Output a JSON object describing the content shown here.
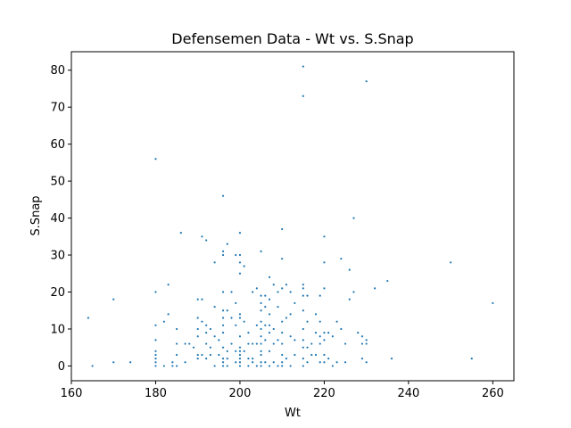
{
  "chart_data": {
    "type": "scatter",
    "title": "Defensemen Data - Wt vs. S.Snap",
    "xlabel": "Wt",
    "ylabel": "S.Snap",
    "xlim": [
      160,
      265
    ],
    "ylim": [
      -4,
      85
    ],
    "xticks": [
      160,
      180,
      200,
      220,
      240,
      260
    ],
    "yticks": [
      0,
      10,
      20,
      30,
      40,
      50,
      60,
      70,
      80
    ],
    "marker_color": "#1f77b4",
    "grid": false,
    "series": [
      {
        "points": [
          [
            164,
            13
          ],
          [
            165,
            0
          ],
          [
            170,
            18
          ],
          [
            170,
            1
          ],
          [
            174,
            1
          ],
          [
            180,
            56
          ],
          [
            180,
            20
          ],
          [
            180,
            11
          ],
          [
            180,
            7
          ],
          [
            180,
            4
          ],
          [
            180,
            3
          ],
          [
            180,
            2
          ],
          [
            180,
            1
          ],
          [
            180,
            0
          ],
          [
            182,
            12
          ],
          [
            182,
            0
          ],
          [
            183,
            22
          ],
          [
            183,
            14
          ],
          [
            184,
            1
          ],
          [
            184,
            0
          ],
          [
            185,
            10
          ],
          [
            185,
            6
          ],
          [
            185,
            3
          ],
          [
            185,
            0
          ],
          [
            186,
            36
          ],
          [
            187,
            6
          ],
          [
            187,
            1
          ],
          [
            188,
            6
          ],
          [
            189,
            5
          ],
          [
            190,
            18
          ],
          [
            190,
            13
          ],
          [
            190,
            10
          ],
          [
            190,
            8
          ],
          [
            190,
            3
          ],
          [
            190,
            2
          ],
          [
            191,
            35
          ],
          [
            191,
            18
          ],
          [
            191,
            12
          ],
          [
            191,
            3
          ],
          [
            192,
            34
          ],
          [
            192,
            11
          ],
          [
            192,
            9
          ],
          [
            192,
            6
          ],
          [
            192,
            2
          ],
          [
            193,
            10
          ],
          [
            193,
            5
          ],
          [
            193,
            3
          ],
          [
            194,
            28
          ],
          [
            194,
            16
          ],
          [
            194,
            8
          ],
          [
            194,
            0
          ],
          [
            195,
            7
          ],
          [
            195,
            3
          ],
          [
            196,
            46
          ],
          [
            196,
            31
          ],
          [
            196,
            30
          ],
          [
            196,
            20
          ],
          [
            196,
            15
          ],
          [
            196,
            13
          ],
          [
            196,
            11
          ],
          [
            196,
            9
          ],
          [
            196,
            5
          ],
          [
            196,
            2
          ],
          [
            196,
            1
          ],
          [
            196,
            0
          ],
          [
            197,
            33
          ],
          [
            197,
            15
          ],
          [
            197,
            4
          ],
          [
            197,
            2
          ],
          [
            197,
            0
          ],
          [
            198,
            20
          ],
          [
            198,
            13
          ],
          [
            198,
            6
          ],
          [
            199,
            30
          ],
          [
            199,
            17
          ],
          [
            199,
            11
          ],
          [
            199,
            4
          ],
          [
            199,
            1
          ],
          [
            200,
            36
          ],
          [
            200,
            30
          ],
          [
            200,
            28
          ],
          [
            200,
            25
          ],
          [
            200,
            14
          ],
          [
            200,
            13
          ],
          [
            200,
            8
          ],
          [
            200,
            5
          ],
          [
            200,
            4
          ],
          [
            200,
            3
          ],
          [
            200,
            2
          ],
          [
            200,
            1
          ],
          [
            200,
            0
          ],
          [
            201,
            27
          ],
          [
            201,
            12
          ],
          [
            201,
            4
          ],
          [
            202,
            9
          ],
          [
            202,
            6
          ],
          [
            202,
            2
          ],
          [
            202,
            0
          ],
          [
            203,
            20
          ],
          [
            203,
            6
          ],
          [
            203,
            2
          ],
          [
            203,
            1
          ],
          [
            204,
            21
          ],
          [
            204,
            11
          ],
          [
            204,
            6
          ],
          [
            204,
            0
          ],
          [
            205,
            31
          ],
          [
            205,
            19
          ],
          [
            205,
            17
          ],
          [
            205,
            15
          ],
          [
            205,
            12
          ],
          [
            205,
            10
          ],
          [
            205,
            8
          ],
          [
            205,
            6
          ],
          [
            205,
            4
          ],
          [
            205,
            3
          ],
          [
            205,
            1
          ],
          [
            205,
            0
          ],
          [
            206,
            19
          ],
          [
            206,
            16
          ],
          [
            206,
            11
          ],
          [
            206,
            7
          ],
          [
            206,
            1
          ],
          [
            207,
            24
          ],
          [
            207,
            18
          ],
          [
            207,
            14
          ],
          [
            207,
            11
          ],
          [
            207,
            9
          ],
          [
            207,
            4
          ],
          [
            207,
            0
          ],
          [
            208,
            22
          ],
          [
            208,
            10
          ],
          [
            208,
            6
          ],
          [
            208,
            1
          ],
          [
            209,
            20
          ],
          [
            209,
            16
          ],
          [
            209,
            7
          ],
          [
            209,
            0
          ],
          [
            210,
            37
          ],
          [
            210,
            29
          ],
          [
            210,
            21
          ],
          [
            210,
            12
          ],
          [
            210,
            9
          ],
          [
            210,
            6
          ],
          [
            210,
            3
          ],
          [
            210,
            1
          ],
          [
            210,
            0
          ],
          [
            211,
            22
          ],
          [
            211,
            13
          ],
          [
            211,
            2
          ],
          [
            212,
            20
          ],
          [
            212,
            14
          ],
          [
            212,
            8
          ],
          [
            212,
            0
          ],
          [
            213,
            17
          ],
          [
            213,
            7
          ],
          [
            213,
            3
          ],
          [
            215,
            81
          ],
          [
            215,
            73
          ],
          [
            215,
            22
          ],
          [
            215,
            21
          ],
          [
            215,
            19
          ],
          [
            215,
            15
          ],
          [
            215,
            10
          ],
          [
            215,
            7
          ],
          [
            215,
            5
          ],
          [
            215,
            2
          ],
          [
            215,
            0
          ],
          [
            216,
            19
          ],
          [
            216,
            12
          ],
          [
            216,
            5
          ],
          [
            216,
            1
          ],
          [
            217,
            6
          ],
          [
            217,
            3
          ],
          [
            218,
            14
          ],
          [
            218,
            9
          ],
          [
            218,
            3
          ],
          [
            219,
            19
          ],
          [
            219,
            12
          ],
          [
            219,
            8
          ],
          [
            219,
            6
          ],
          [
            219,
            1
          ],
          [
            220,
            35
          ],
          [
            220,
            28
          ],
          [
            220,
            21
          ],
          [
            220,
            9
          ],
          [
            220,
            7
          ],
          [
            220,
            3
          ],
          [
            220,
            1
          ],
          [
            221,
            9
          ],
          [
            221,
            2
          ],
          [
            222,
            8
          ],
          [
            222,
            0
          ],
          [
            223,
            12
          ],
          [
            223,
            1
          ],
          [
            224,
            29
          ],
          [
            224,
            10
          ],
          [
            225,
            6
          ],
          [
            225,
            1
          ],
          [
            226,
            26
          ],
          [
            226,
            18
          ],
          [
            227,
            40
          ],
          [
            227,
            20
          ],
          [
            228,
            9
          ],
          [
            229,
            8
          ],
          [
            229,
            2
          ],
          [
            229,
            6
          ],
          [
            230,
            77
          ],
          [
            230,
            7
          ],
          [
            230,
            6
          ],
          [
            230,
            1
          ],
          [
            232,
            21
          ],
          [
            235,
            23
          ],
          [
            236,
            2
          ],
          [
            250,
            28
          ],
          [
            255,
            2
          ],
          [
            260,
            17
          ]
        ]
      }
    ]
  }
}
